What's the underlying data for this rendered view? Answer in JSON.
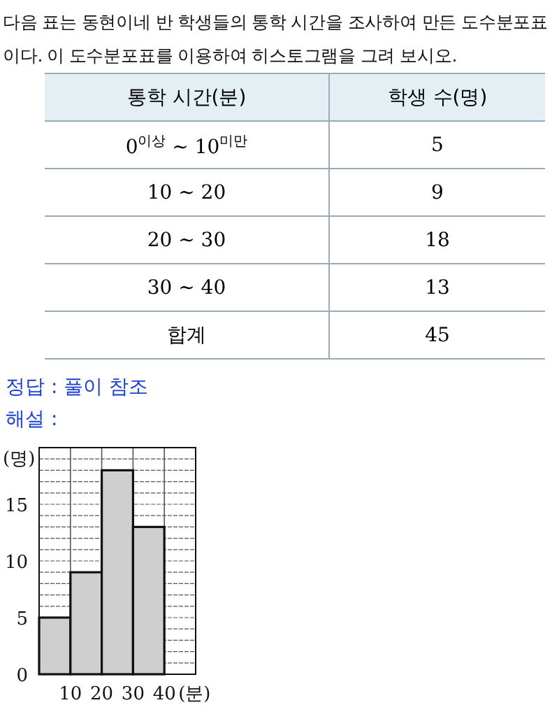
{
  "chart_data": {
    "type": "histogram",
    "annotations": [
      "다음 표는 동현이네 반 학생들의 통학 시간을 조사하여 만든 도수분포표이다. 이 도수분포표를 이용하여 히스토그램을 그려 보시오.",
      "통학 시간(분)",
      "학생 수(명)",
      "0$^{이상}$ ~ 10$^{미만}$",
      "5",
      "10 ~ 20",
      "9",
      "20 ~ 30",
      "18",
      "30 ~ 40",
      "13",
      "합계",
      "45",
      "정답 : 풀이 참조",
      "해설 :"
    ],
    "bins": [
      0,
      10,
      20,
      30,
      40
    ],
    "values": [
      5,
      9,
      18,
      13
    ],
    "color": "#cfcfcf",
    "xlim": [
      0,
      50
    ],
    "xticks": [
      10,
      20,
      30,
      40
    ],
    "ylim": [
      0,
      20
    ],
    "yticks": [
      0,
      {
        "value": 1,
        "label": null
      },
      {
        "value": 2,
        "label": null
      },
      {
        "value": 3,
        "label": null
      },
      {
        "value": 4,
        "label": null
      },
      5,
      {
        "value": 6,
        "label": null
      },
      {
        "value": 7,
        "label": null
      },
      {
        "value": 8,
        "label": null
      },
      {
        "value": 9,
        "label": null
      },
      10,
      {
        "value": 11,
        "label": null
      },
      {
        "value": 12,
        "label": null
      },
      {
        "value": 13,
        "label": null
      },
      {
        "value": 14,
        "label": null
      },
      15,
      {
        "value": 16,
        "label": null
      },
      {
        "value": 17,
        "label": null
      },
      {
        "value": 18,
        "label": null
      },
      {
        "value": 19,
        "label": null
      }
    ],
    "xlabel": "(분)",
    "ylabel": "(명)",
    "grid": true
  }
}
